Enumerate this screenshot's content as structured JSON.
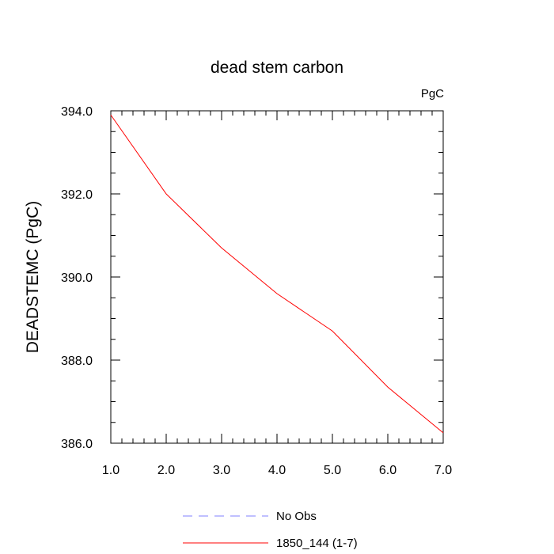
{
  "chart_data": {
    "type": "line",
    "title": "dead stem carbon",
    "units_label": "PgC",
    "ylabel": "DEADSTEMC  (PgC)",
    "xlabel": "",
    "xlim": [
      1.0,
      7.0
    ],
    "ylim": [
      386.0,
      394.0
    ],
    "x_ticks": [
      1.0,
      2.0,
      3.0,
      4.0,
      5.0,
      6.0,
      7.0
    ],
    "x_tick_labels": [
      "1.0",
      "2.0",
      "3.0",
      "4.0",
      "5.0",
      "6.0",
      "7.0"
    ],
    "y_ticks": [
      386.0,
      388.0,
      390.0,
      392.0,
      394.0
    ],
    "y_tick_labels": [
      "386.0",
      "388.0",
      "390.0",
      "392.0",
      "394.0"
    ],
    "grid": false,
    "legend_position": "bottom",
    "series": [
      {
        "name": "No Obs",
        "color": "#8080ff",
        "dash": "dashed",
        "x": [],
        "values": []
      },
      {
        "name": "1850_144 (1-7)",
        "color": "#ff0000",
        "dash": "solid",
        "x": [
          1.0,
          2.0,
          3.0,
          4.0,
          5.0,
          6.0,
          7.0
        ],
        "values": [
          393.9,
          392.0,
          390.7,
          389.6,
          388.7,
          387.35,
          386.25
        ]
      }
    ]
  }
}
